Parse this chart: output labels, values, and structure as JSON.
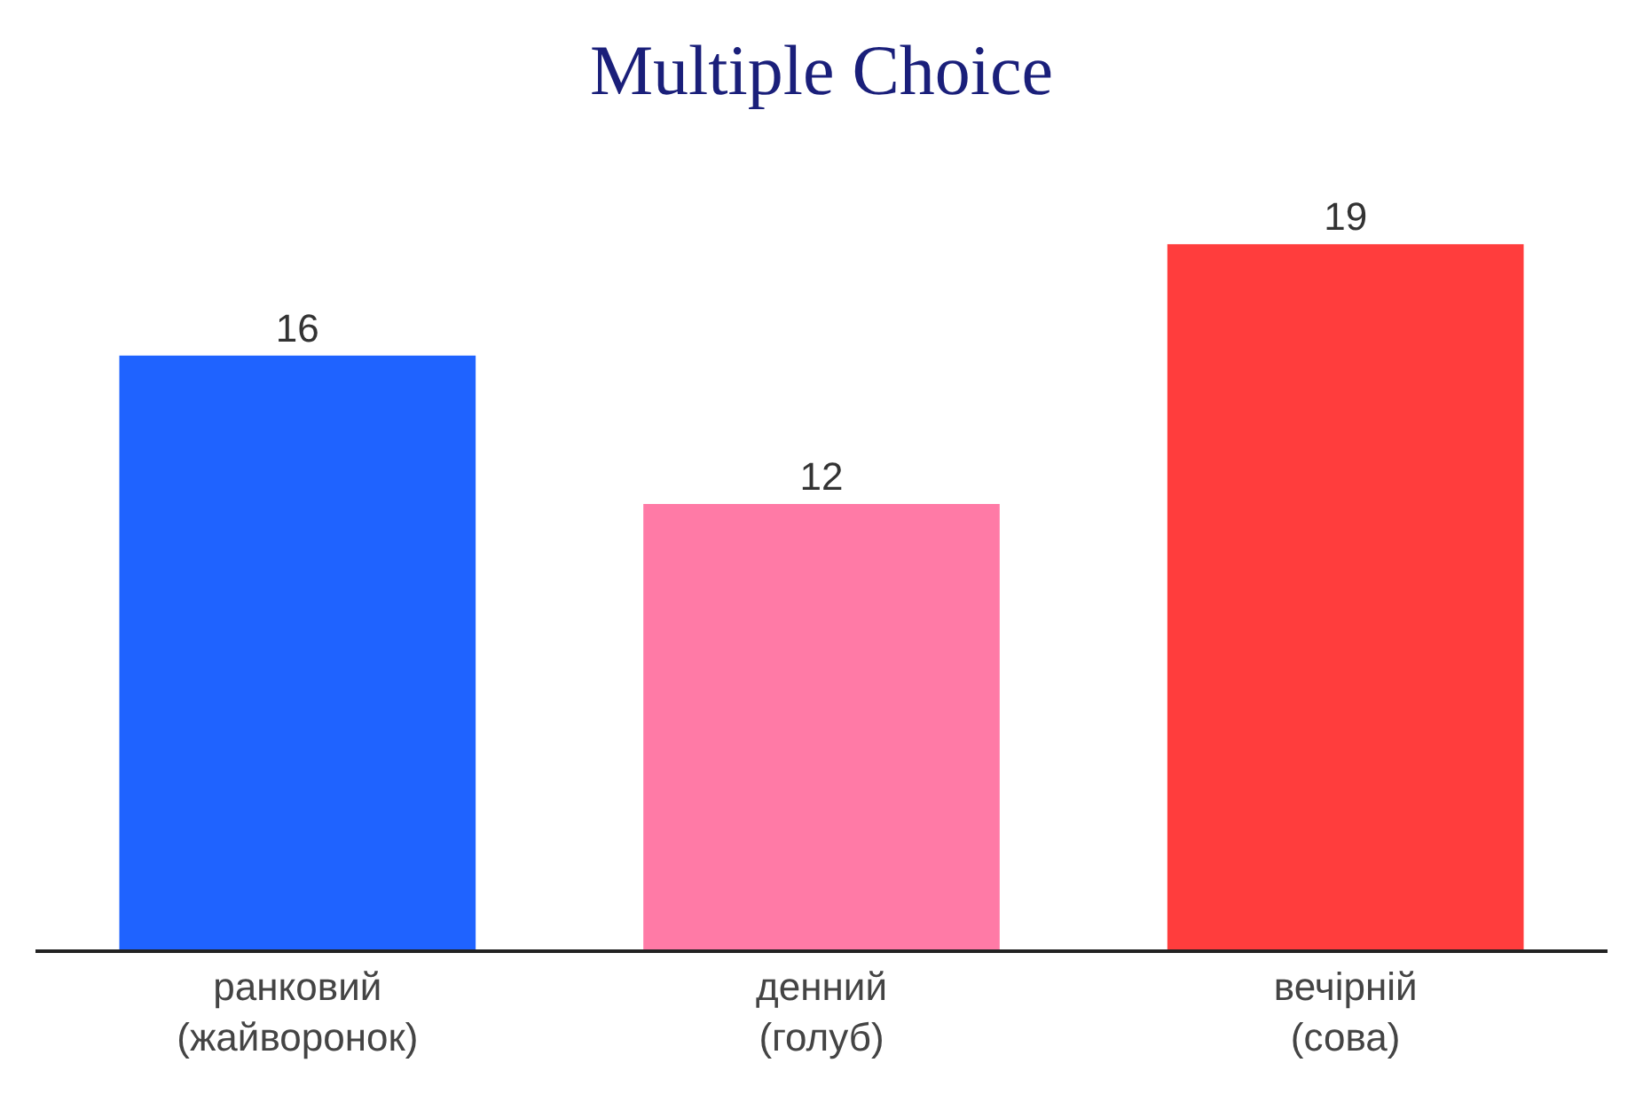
{
  "chart_data": {
    "type": "bar",
    "title": "Multiple Choice",
    "categories": [
      "ранковий\n(жайворонок)",
      "денний\n(голуб)",
      "вечірній\n(сова)"
    ],
    "values": [
      16,
      12,
      19
    ],
    "colors": [
      "#1f63ff",
      "#ff7aa6",
      "#ff3d3d"
    ],
    "data_labels": true,
    "legend": false,
    "tick_labels": "x"
  }
}
